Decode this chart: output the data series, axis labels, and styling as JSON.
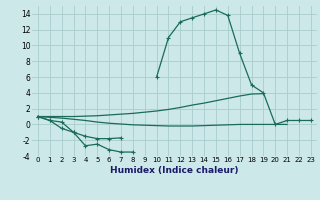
{
  "x": [
    0,
    1,
    2,
    3,
    4,
    5,
    6,
    7,
    8,
    9,
    10,
    11,
    12,
    13,
    14,
    15,
    16,
    17,
    18,
    19,
    20,
    21,
    22,
    23
  ],
  "y_main": [
    1,
    0.5,
    0.3,
    -1.0,
    -2.7,
    -2.5,
    -3.2,
    -3.5,
    -3.5,
    null,
    6,
    11,
    13,
    13.5,
    14,
    14.5,
    13.8,
    9,
    5,
    4,
    0,
    0.5,
    0.5,
    0.5
  ],
  "y_dip": [
    1,
    0.5,
    -0.5,
    -1.0,
    -1.5,
    -1.8,
    -1.8,
    -1.7,
    null,
    null,
    null,
    null,
    null,
    null,
    null,
    null,
    null,
    null,
    null,
    null,
    null,
    null,
    null,
    null
  ],
  "y_upper_trend": [
    1,
    1.0,
    1.0,
    1.0,
    1.05,
    1.1,
    1.2,
    1.3,
    1.4,
    1.55,
    1.7,
    1.9,
    2.15,
    2.45,
    2.7,
    3.0,
    3.3,
    3.6,
    3.85,
    3.9,
    null,
    null,
    null,
    null
  ],
  "y_lower_trend": [
    1,
    0.9,
    0.8,
    0.65,
    0.5,
    0.3,
    0.15,
    0.05,
    -0.05,
    -0.1,
    -0.15,
    -0.2,
    -0.2,
    -0.2,
    -0.15,
    -0.1,
    -0.05,
    0.0,
    0.0,
    0.0,
    0.0,
    0.0,
    null,
    null
  ],
  "bg_color": "#cce8e8",
  "grid_color": "#aacccc",
  "line_color": "#1a6b5a",
  "xlabel": "Humidex (Indice chaleur)",
  "ylim": [
    -4,
    15
  ],
  "xlim": [
    -0.5,
    23.5
  ],
  "yticks": [
    -4,
    -2,
    0,
    2,
    4,
    6,
    8,
    10,
    12,
    14
  ],
  "xticks": [
    0,
    1,
    2,
    3,
    4,
    5,
    6,
    7,
    8,
    9,
    10,
    11,
    12,
    13,
    14,
    15,
    16,
    17,
    18,
    19,
    20,
    21,
    22,
    23
  ]
}
